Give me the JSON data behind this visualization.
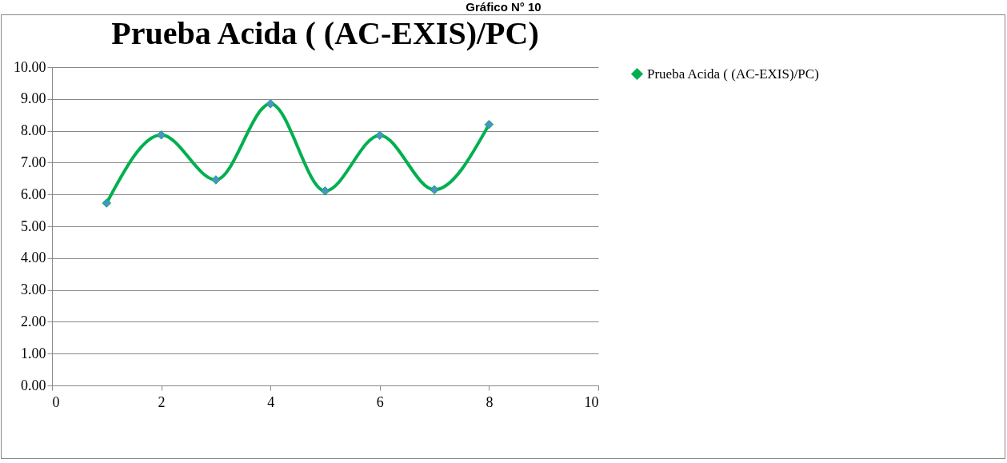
{
  "chart_data": {
    "type": "line",
    "title": "Prueba Acida ( (AC-EXIS)/PC)",
    "annotations": [
      "Gráfico N° 10"
    ],
    "x": [
      1,
      2,
      3,
      4,
      5,
      6,
      7,
      8
    ],
    "series": [
      {
        "name": "Prueba Acida ( (AC-EXIS)/PC)",
        "color": "#00b050",
        "values": [
          5.73,
          7.87,
          6.46,
          8.85,
          6.11,
          7.86,
          6.15,
          8.2
        ]
      }
    ],
    "xlim": [
      0,
      10
    ],
    "xticks": [
      0,
      2,
      4,
      6,
      8,
      10
    ],
    "ylim": [
      0,
      10
    ],
    "yticks": [
      {
        "value": 0,
        "label": "0.00"
      },
      {
        "value": 1,
        "label": "1.00"
      },
      {
        "value": 2,
        "label": "2.00"
      },
      {
        "value": 3,
        "label": "3.00"
      },
      {
        "value": 4,
        "label": "4.00"
      },
      {
        "value": 5,
        "label": "5.00"
      },
      {
        "value": 6,
        "label": "6.00"
      },
      {
        "value": 7,
        "label": "7.00"
      },
      {
        "value": 8,
        "label": "8.00"
      },
      {
        "value": 9,
        "label": "9.00"
      },
      {
        "value": 10,
        "label": "10.00"
      }
    ],
    "grid": "y",
    "legend": "right",
    "marker": "diamond"
  }
}
